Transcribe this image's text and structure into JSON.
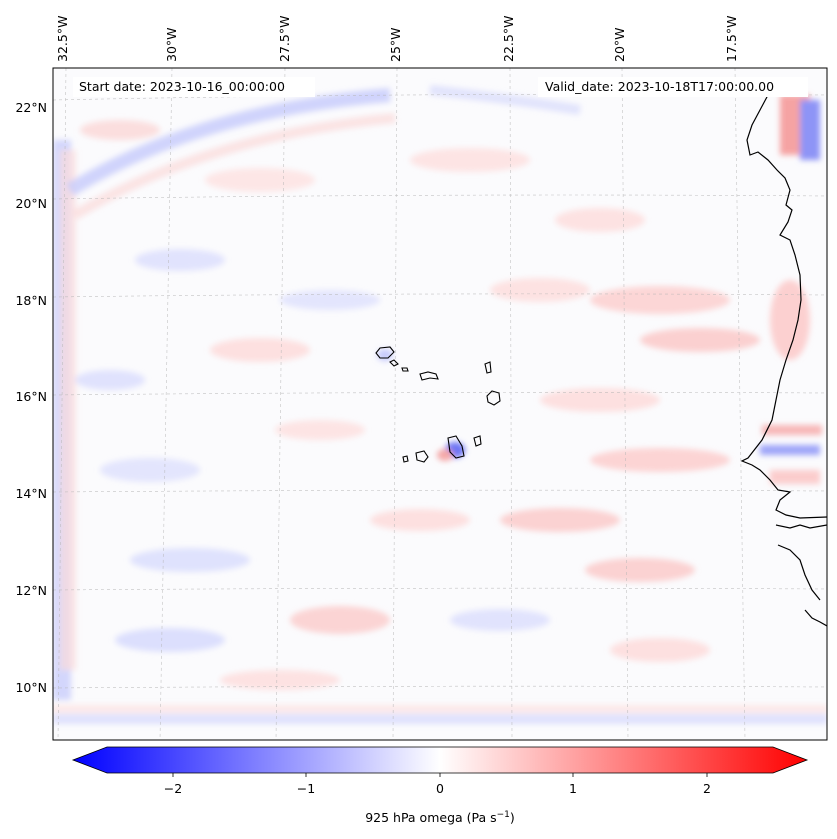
{
  "map": {
    "start_date": "Start date: 2023-10-16_00:00:00",
    "valid_date": "Valid_date: 2023-10-18T17:00:00.00",
    "lon_labels": [
      "32.5°W",
      "30°W",
      "27.5°W",
      "25°W",
      "22.5°W",
      "20°W",
      "17.5°W"
    ],
    "lat_labels": [
      "22°N",
      "20°N",
      "18°N",
      "16°N",
      "14°N",
      "12°N",
      "10°N"
    ],
    "field_colors": {
      "negative": "#0000ff",
      "zero": "#ffffff",
      "positive": "#ff0000"
    }
  },
  "colorbar": {
    "ticks": [
      "−2",
      "−1",
      "0",
      "1",
      "2"
    ],
    "title": "925 hPa omega (Pa s",
    "title_exp": "−1",
    "title_end": ")",
    "range": [
      -2.75,
      2.75
    ]
  }
}
